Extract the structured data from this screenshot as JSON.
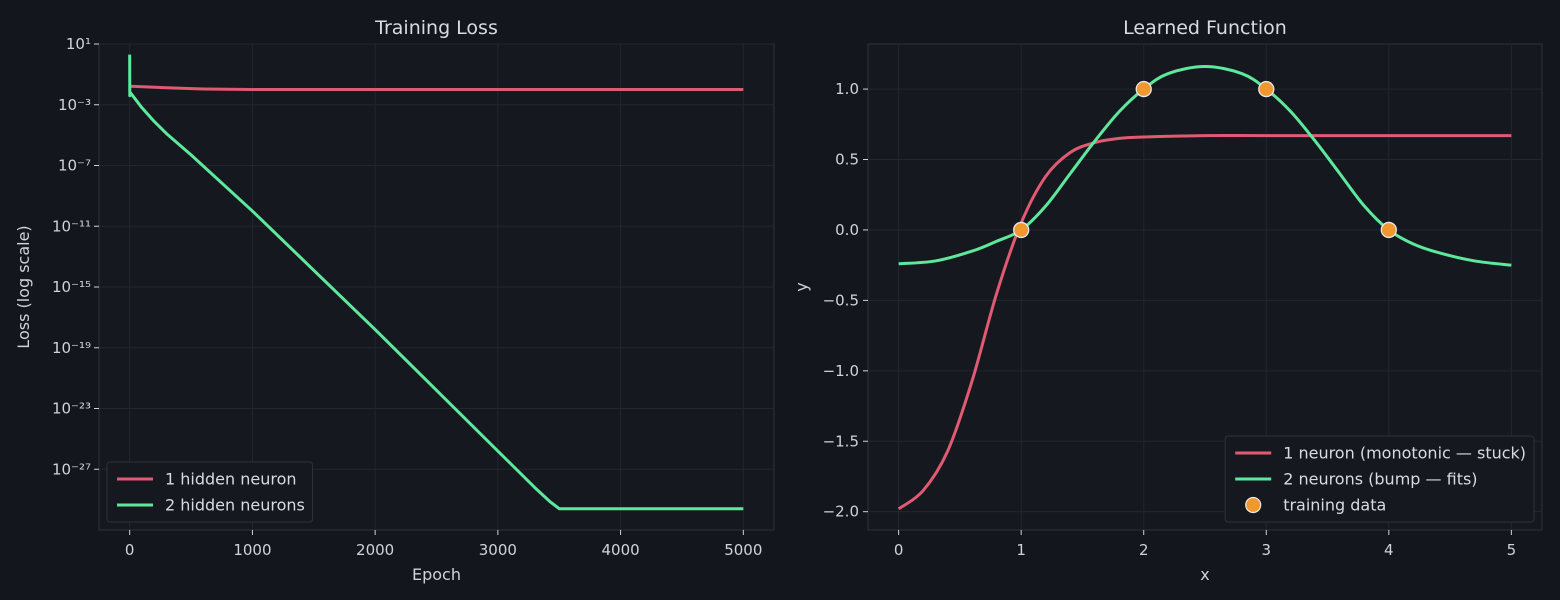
{
  "colors": {
    "background": "#14161e",
    "plot_bg": "#161820",
    "spine": "#2e3240",
    "grid": "#23262f",
    "text": "#d0d3da",
    "one_neuron": "#e05a72",
    "two_neurons": "#5ee89c",
    "training_points": "#f0982e"
  },
  "chart_data": [
    {
      "type": "line",
      "title": "Training Loss",
      "xlabel": "Epoch",
      "ylabel": "Loss (log scale)",
      "yscale": "log",
      "xlim": [
        -250,
        5250
      ],
      "ylim_exponent": [
        -31,
        1
      ],
      "x_ticks": [
        0,
        1000,
        2000,
        3000,
        4000,
        5000
      ],
      "y_tick_exponents": [
        1,
        -3,
        -7,
        -11,
        -15,
        -19,
        -23,
        -27
      ],
      "y_tick_base": "10",
      "grid": true,
      "legend_position": "lower-left",
      "series": [
        {
          "name": "1 hidden neuron",
          "color_key": "one_neuron",
          "x": [
            0,
            10,
            300,
            600,
            1000,
            2000,
            3000,
            4000,
            5000
          ],
          "log10_y": [
            -1.75,
            -1.78,
            -1.88,
            -1.96,
            -2.0,
            -2.0,
            -2.0,
            -2.0,
            -2.0
          ]
        },
        {
          "name": "2 hidden neurons",
          "color_key": "two_neurons",
          "x": [
            0,
            1,
            2,
            5,
            100,
            200,
            300,
            500,
            1000,
            1500,
            2000,
            2500,
            3000,
            3300,
            3420,
            3500,
            3520,
            4000,
            5000
          ],
          "log10_y": [
            0.3,
            -2.4,
            -2.2,
            -2.2,
            -3.2,
            -4.1,
            -4.9,
            -6.3,
            -10.0,
            -13.9,
            -17.8,
            -21.8,
            -25.8,
            -28.2,
            -29.1,
            -29.6,
            -29.6,
            -29.6,
            -29.6
          ]
        }
      ]
    },
    {
      "type": "line",
      "title": "Learned Function",
      "xlabel": "x",
      "ylabel": "y",
      "xlim": [
        -0.25,
        5.25
      ],
      "ylim": [
        -2.13,
        1.32
      ],
      "x_ticks": [
        0,
        1,
        2,
        3,
        4,
        5
      ],
      "y_ticks": [
        -2.0,
        -1.5,
        -1.0,
        -0.5,
        0.0,
        0.5,
        1.0
      ],
      "grid": true,
      "legend_position": "lower-right",
      "series": [
        {
          "name": "1 neuron (monotonic — stuck)",
          "color_key": "one_neuron",
          "x": [
            0,
            0.2,
            0.4,
            0.6,
            0.8,
            1.0,
            1.2,
            1.4,
            1.6,
            1.8,
            2.0,
            2.5,
            3.0,
            4.0,
            5.0
          ],
          "y": [
            -1.98,
            -1.85,
            -1.57,
            -1.07,
            -0.45,
            0.05,
            0.38,
            0.55,
            0.62,
            0.65,
            0.66,
            0.67,
            0.67,
            0.67,
            0.67
          ]
        },
        {
          "name": "2 neurons (bump — fits)",
          "color_key": "two_neurons",
          "x": [
            0,
            0.3,
            0.6,
            0.8,
            1.0,
            1.2,
            1.4,
            1.6,
            1.8,
            2.0,
            2.2,
            2.5,
            2.8,
            3.0,
            3.2,
            3.4,
            3.6,
            3.8,
            4.0,
            4.2,
            4.4,
            4.7,
            5.0
          ],
          "y": [
            -0.24,
            -0.22,
            -0.15,
            -0.08,
            0.0,
            0.17,
            0.4,
            0.63,
            0.84,
            1.0,
            1.11,
            1.16,
            1.11,
            1.0,
            0.84,
            0.63,
            0.4,
            0.17,
            0.0,
            -0.1,
            -0.16,
            -0.22,
            -0.25
          ]
        }
      ],
      "points": {
        "name": "training data",
        "color_key": "training_points",
        "x": [
          1,
          2,
          3,
          4
        ],
        "y": [
          0.0,
          1.0,
          1.0,
          0.0
        ]
      }
    }
  ]
}
